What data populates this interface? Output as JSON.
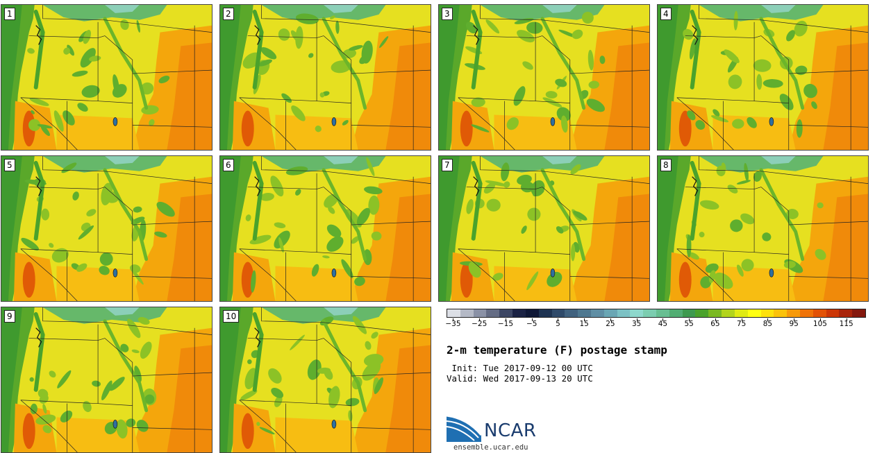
{
  "figure": {
    "title": "2-m temperature (F) postage stamp",
    "init_label": " Init: Tue 2017-09-12 00 UTC",
    "valid_label": "Valid: Wed 2017-09-13 20 UTC",
    "logo_text": "NCAR",
    "url": "ensemble.ucar.edu"
  },
  "chart_data": {
    "type": "heatmap",
    "title": "2-m temperature (F) postage stamp",
    "variable": "2-m temperature",
    "units": "F",
    "members": [
      "1",
      "2",
      "3",
      "4",
      "5",
      "6",
      "7",
      "8",
      "9",
      "10"
    ],
    "colorbar": {
      "range": [
        -35,
        120
      ],
      "interval": 5,
      "tick_labels": [
        "−35",
        "−25",
        "−15",
        "−5",
        "5",
        "15",
        "25",
        "35",
        "45",
        "55",
        "65",
        "75",
        "85",
        "95",
        "105",
        "115"
      ],
      "colors": [
        "#dcdfe6",
        "#b4b9c6",
        "#8a91a6",
        "#646c84",
        "#3c4664",
        "#1a2244",
        "#0e1736",
        "#1e3352",
        "#2f4a6a",
        "#41627f",
        "#4f7890",
        "#5f8ea4",
        "#6aa6b4",
        "#7cc1c4",
        "#8ed8cc",
        "#7ccdb0",
        "#68bf92",
        "#52ad73",
        "#3e9a4f",
        "#4aa22c",
        "#7ab922",
        "#b2d41c",
        "#e0ea14",
        "#ffff12",
        "#fde10c",
        "#fbc20a",
        "#f79a0a",
        "#ef7308",
        "#e25206",
        "#cc3606",
        "#a9240a",
        "#84180e"
      ]
    }
  }
}
